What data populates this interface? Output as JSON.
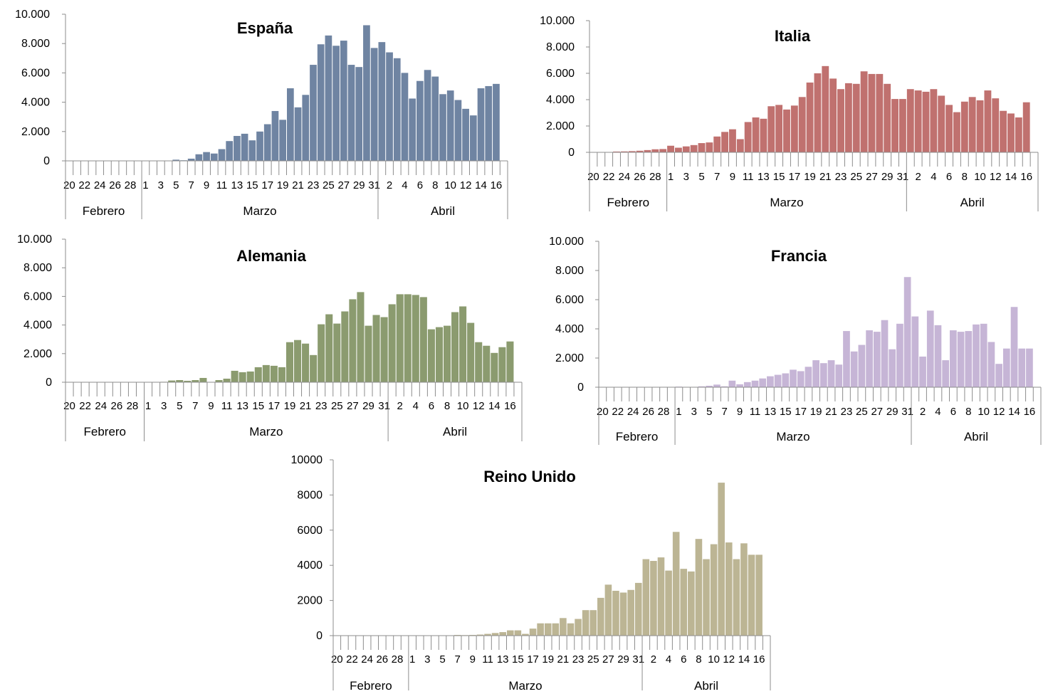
{
  "chart_data": [
    {
      "type": "bar",
      "title": "España",
      "color": "#6f84a2",
      "yticks": [
        "0",
        "2.000",
        "4.000",
        "6.000",
        "8.000",
        "10.000"
      ],
      "ylim": [
        0,
        10000
      ],
      "x": [
        "20",
        "21",
        "22",
        "23",
        "24",
        "25",
        "26",
        "27",
        "28",
        "29",
        "1",
        "2",
        "3",
        "4",
        "5",
        "6",
        "7",
        "8",
        "9",
        "10",
        "11",
        "12",
        "13",
        "14",
        "15",
        "16",
        "17",
        "18",
        "19",
        "20",
        "21",
        "22",
        "23",
        "24",
        "25",
        "26",
        "27",
        "28",
        "29",
        "30",
        "31",
        "1",
        "2",
        "3",
        "4",
        "5",
        "6",
        "7",
        "8",
        "9",
        "10",
        "11",
        "12",
        "13",
        "14",
        "15",
        "16",
        "17"
      ],
      "x_tick_labels": [
        "20",
        "22",
        "24",
        "26",
        "28",
        "1",
        "3",
        "5",
        "7",
        "9",
        "11",
        "13",
        "15",
        "17",
        "19",
        "21",
        "23",
        "25",
        "27",
        "29",
        "31",
        "2",
        "4",
        "6",
        "8",
        "10",
        "12",
        "14",
        "16"
      ],
      "months": [
        "Febrero",
        "Marzo",
        "Abril"
      ],
      "values": [
        0,
        0,
        0,
        0,
        0,
        0,
        0,
        0,
        0,
        0,
        0,
        0,
        0,
        0,
        80,
        40,
        150,
        450,
        600,
        500,
        800,
        1350,
        1700,
        1850,
        1400,
        2000,
        2500,
        3400,
        2800,
        4950,
        3650,
        4500,
        6550,
        7950,
        8550,
        7850,
        8200,
        6550,
        6400,
        9250,
        7700,
        8100,
        7400,
        7000,
        6000,
        4250,
        5450,
        6200,
        5750,
        4550,
        4800,
        4150,
        3550,
        3100,
        4950,
        5100,
        5250,
        0
      ]
    },
    {
      "type": "bar",
      "title": "Italia",
      "color": "#c0716f",
      "yticks": [
        "0",
        "2.000",
        "4.000",
        "6.000",
        "8.000",
        "10.000"
      ],
      "ylim": [
        0,
        10000
      ],
      "x": [
        "20",
        "21",
        "22",
        "23",
        "24",
        "25",
        "26",
        "27",
        "28",
        "29",
        "1",
        "2",
        "3",
        "4",
        "5",
        "6",
        "7",
        "8",
        "9",
        "10",
        "11",
        "12",
        "13",
        "14",
        "15",
        "16",
        "17",
        "18",
        "19",
        "20",
        "21",
        "22",
        "23",
        "24",
        "25",
        "26",
        "27",
        "28",
        "29",
        "30",
        "31",
        "1",
        "2",
        "3",
        "4",
        "5",
        "6",
        "7",
        "8",
        "9",
        "10",
        "11",
        "12",
        "13",
        "14",
        "15",
        "16",
        "17"
      ],
      "x_tick_labels": [
        "20",
        "22",
        "24",
        "26",
        "28",
        "1",
        "3",
        "5",
        "7",
        "9",
        "11",
        "13",
        "15",
        "17",
        "19",
        "21",
        "23",
        "25",
        "27",
        "29",
        "31",
        "2",
        "4",
        "6",
        "8",
        "10",
        "12",
        "14",
        "16"
      ],
      "months": [
        "Febrero",
        "Marzo",
        "Abril"
      ],
      "values": [
        0,
        0,
        20,
        60,
        70,
        90,
        120,
        170,
        230,
        250,
        500,
        350,
        450,
        550,
        700,
        750,
        1200,
        1550,
        1750,
        1000,
        2300,
        2650,
        2550,
        3500,
        3600,
        3250,
        3550,
        4200,
        5300,
        6000,
        6550,
        5600,
        4800,
        5250,
        5200,
        6150,
        5950,
        5950,
        5200,
        4050,
        4050,
        4800,
        4700,
        4600,
        4800,
        4300,
        3600,
        3050,
        3850,
        4200,
        3950,
        4700,
        4100,
        3150,
        2950,
        2650,
        3800,
        0
      ]
    },
    {
      "type": "bar",
      "title": "Alemania",
      "color": "#8b9b6f",
      "yticks": [
        "0",
        "2.000",
        "4.000",
        "6.000",
        "8.000",
        "10.000"
      ],
      "ylim": [
        0,
        10000
      ],
      "x": [
        "20",
        "21",
        "22",
        "23",
        "24",
        "25",
        "26",
        "27",
        "28",
        "29",
        "1",
        "2",
        "3",
        "4",
        "5",
        "6",
        "7",
        "8",
        "9",
        "10",
        "11",
        "12",
        "13",
        "14",
        "15",
        "16",
        "17",
        "18",
        "19",
        "20",
        "21",
        "22",
        "23",
        "24",
        "25",
        "26",
        "27",
        "28",
        "29",
        "30",
        "31",
        "1",
        "2",
        "3",
        "4",
        "5",
        "6",
        "7",
        "8",
        "9",
        "10",
        "11",
        "12",
        "13",
        "14",
        "15",
        "16",
        "17"
      ],
      "x_tick_labels": [
        "20",
        "22",
        "24",
        "26",
        "28",
        "1",
        "3",
        "5",
        "7",
        "9",
        "11",
        "13",
        "15",
        "17",
        "19",
        "21",
        "23",
        "25",
        "27",
        "29",
        "31",
        "2",
        "4",
        "6",
        "8",
        "10",
        "12",
        "14",
        "16"
      ],
      "months": [
        "Febrero",
        "Marzo",
        "Abril"
      ],
      "values": [
        0,
        0,
        0,
        0,
        0,
        0,
        0,
        0,
        0,
        0,
        20,
        20,
        30,
        120,
        150,
        100,
        150,
        300,
        0,
        150,
        250,
        800,
        700,
        750,
        1050,
        1200,
        1150,
        1050,
        2800,
        2950,
        2700,
        1900,
        4050,
        4750,
        4100,
        4950,
        5800,
        6300,
        3950,
        4700,
        4550,
        5450,
        6150,
        6150,
        6100,
        5950,
        3700,
        3850,
        3950,
        4900,
        5300,
        4150,
        2800,
        2550,
        2050,
        2450,
        2850,
        0
      ]
    },
    {
      "type": "bar",
      "title": "Francia",
      "color": "#c6b5d6",
      "yticks": [
        "0",
        "2.000",
        "4.000",
        "6.000",
        "8.000",
        "10.000"
      ],
      "ylim": [
        0,
        10000
      ],
      "x": [
        "20",
        "21",
        "22",
        "23",
        "24",
        "25",
        "26",
        "27",
        "28",
        "29",
        "1",
        "2",
        "3",
        "4",
        "5",
        "6",
        "7",
        "8",
        "9",
        "10",
        "11",
        "12",
        "13",
        "14",
        "15",
        "16",
        "17",
        "18",
        "19",
        "20",
        "21",
        "22",
        "23",
        "24",
        "25",
        "26",
        "27",
        "28",
        "29",
        "30",
        "31",
        "1",
        "2",
        "3",
        "4",
        "5",
        "6",
        "7",
        "8",
        "9",
        "10",
        "11",
        "12",
        "13",
        "14",
        "15",
        "16",
        "17"
      ],
      "x_tick_labels": [
        "20",
        "22",
        "24",
        "26",
        "28",
        "1",
        "3",
        "5",
        "7",
        "9",
        "11",
        "13",
        "15",
        "17",
        "19",
        "21",
        "23",
        "25",
        "27",
        "29",
        "31",
        "2",
        "4",
        "6",
        "8",
        "10",
        "12",
        "14",
        "16"
      ],
      "months": [
        "Febrero",
        "Marzo",
        "Abril"
      ],
      "values": [
        0,
        0,
        0,
        0,
        0,
        0,
        0,
        0,
        0,
        0,
        40,
        20,
        20,
        60,
        100,
        180,
        60,
        450,
        200,
        350,
        450,
        600,
        750,
        850,
        950,
        1200,
        1100,
        1400,
        1850,
        1650,
        1850,
        1550,
        3850,
        2450,
        2900,
        3900,
        3800,
        4600,
        2600,
        4350,
        7550,
        4850,
        2100,
        5250,
        4250,
        1850,
        3900,
        3800,
        3850,
        4300,
        4350,
        3100,
        1600,
        2650,
        5500,
        2650,
        2650,
        0
      ]
    },
    {
      "type": "bar",
      "title": "Reino Unido",
      "color": "#bcb594",
      "yticks": [
        "0",
        "2000",
        "4000",
        "6000",
        "8000",
        "10000"
      ],
      "ylim": [
        0,
        10000
      ],
      "x": [
        "20",
        "21",
        "22",
        "23",
        "24",
        "25",
        "26",
        "27",
        "28",
        "29",
        "1",
        "2",
        "3",
        "4",
        "5",
        "6",
        "7",
        "8",
        "9",
        "10",
        "11",
        "12",
        "13",
        "14",
        "15",
        "16",
        "17",
        "18",
        "19",
        "20",
        "21",
        "22",
        "23",
        "24",
        "25",
        "26",
        "27",
        "28",
        "29",
        "30",
        "31",
        "1",
        "2",
        "3",
        "4",
        "5",
        "6",
        "7",
        "8",
        "9",
        "10",
        "11",
        "12",
        "13",
        "14",
        "15",
        "16",
        "17"
      ],
      "x_tick_labels": [
        "20",
        "22",
        "24",
        "26",
        "28",
        "1",
        "3",
        "5",
        "7",
        "9",
        "11",
        "13",
        "15",
        "17",
        "19",
        "21",
        "23",
        "25",
        "27",
        "29",
        "31",
        "2",
        "4",
        "6",
        "8",
        "10",
        "12",
        "14",
        "16"
      ],
      "months": [
        "Febrero",
        "Marzo",
        "Abril"
      ],
      "values": [
        0,
        0,
        0,
        0,
        0,
        0,
        0,
        0,
        0,
        0,
        0,
        0,
        10,
        10,
        20,
        20,
        40,
        30,
        40,
        60,
        100,
        150,
        200,
        300,
        300,
        100,
        400,
        700,
        700,
        700,
        1000,
        700,
        950,
        1450,
        1450,
        2150,
        2900,
        2550,
        2450,
        2600,
        3000,
        4350,
        4250,
        4450,
        3700,
        5900,
        3800,
        3650,
        5500,
        4350,
        5200,
        8700,
        5300,
        4350,
        5250,
        4600,
        4600,
        0
      ]
    }
  ]
}
